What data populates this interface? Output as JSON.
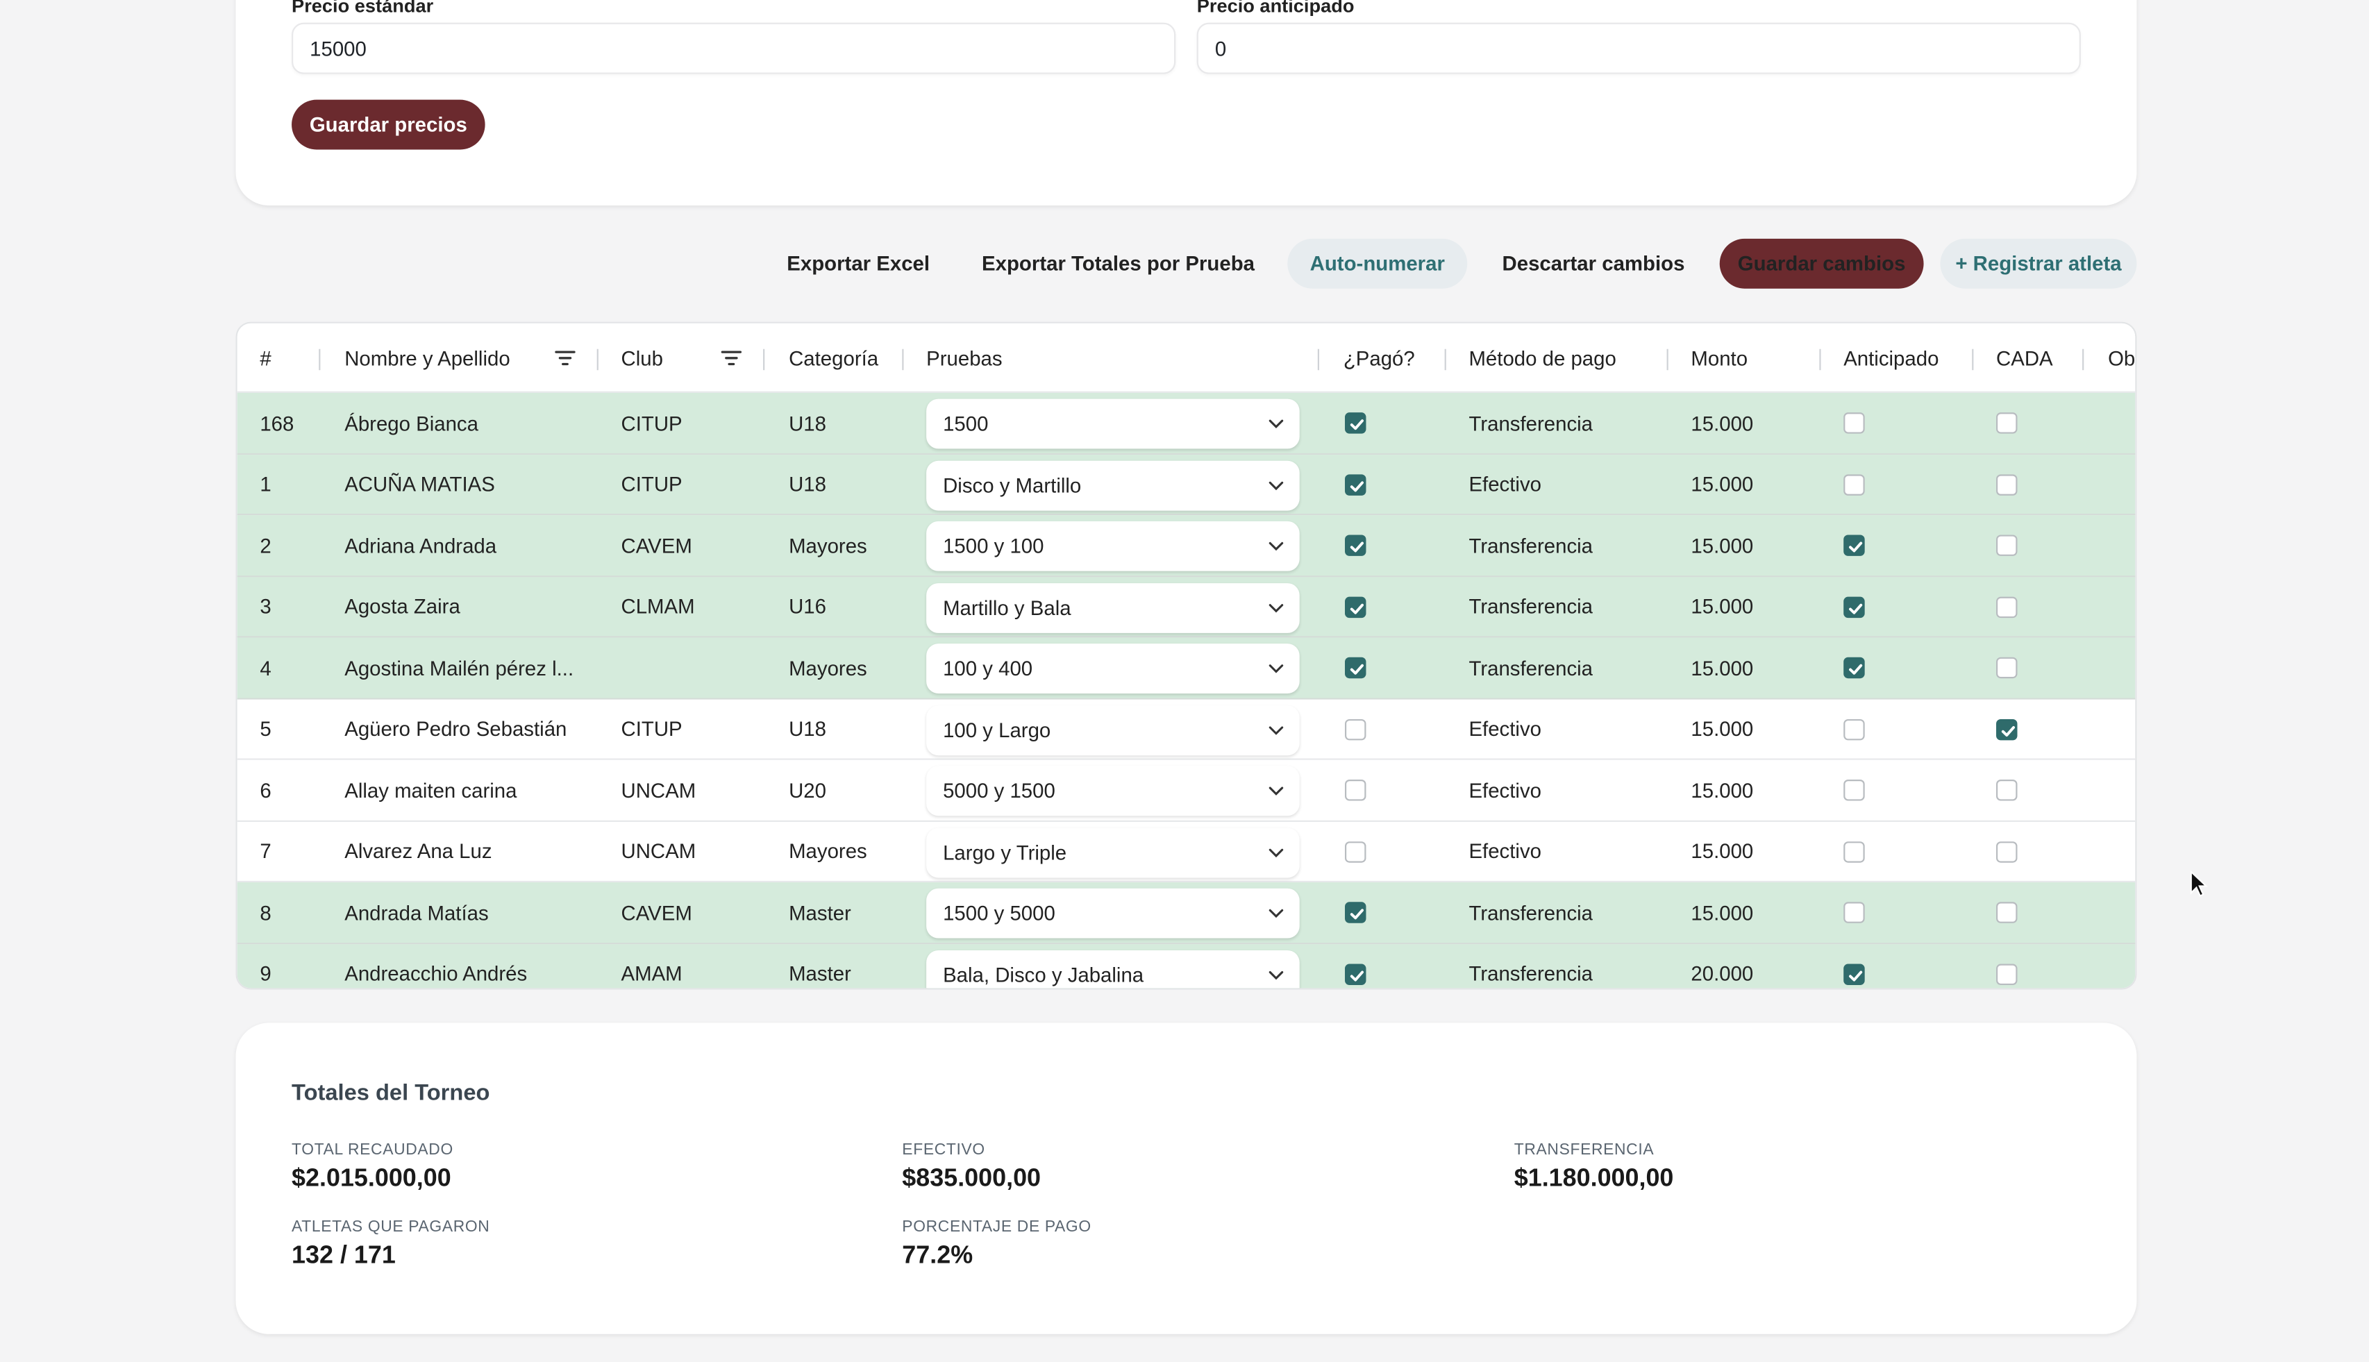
{
  "prices": {
    "standard_label": "Precio estándar",
    "standard_value": "15000",
    "early_label": "Precio anticipado",
    "early_value": "0",
    "save_label": "Guardar precios"
  },
  "toolbar": {
    "export_excel": "Exportar Excel",
    "export_totals": "Exportar Totales por Prueba",
    "auto_number": "Auto-numerar",
    "discard": "Descartar cambios",
    "save": "Guardar cambios",
    "register": "+ Registrar atleta"
  },
  "table": {
    "headers": {
      "num": "#",
      "name": "Nombre y Apellido",
      "club": "Club",
      "category": "Categoría",
      "events": "Pruebas",
      "paid": "¿Pagó?",
      "method": "Método de pago",
      "amount": "Monto",
      "early": "Anticipado",
      "cada": "CADA",
      "obs": "Ob"
    },
    "rows": [
      {
        "num": "168",
        "name": "Ábrego Bianca",
        "club": "CITUP",
        "category": "U18",
        "events": "1500",
        "paid": true,
        "method": "Transferencia",
        "amount": "15.000",
        "early": false,
        "cada": false
      },
      {
        "num": "1",
        "name": "ACUÑA MATIAS",
        "club": "CITUP",
        "category": "U18",
        "events": "Disco y Martillo",
        "paid": true,
        "method": "Efectivo",
        "amount": "15.000",
        "early": false,
        "cada": false
      },
      {
        "num": "2",
        "name": "Adriana Andrada",
        "club": "CAVEM",
        "category": "Mayores",
        "events": "1500 y 100",
        "paid": true,
        "method": "Transferencia",
        "amount": "15.000",
        "early": true,
        "cada": false
      },
      {
        "num": "3",
        "name": "Agosta Zaira",
        "club": "CLMAM",
        "category": "U16",
        "events": "Martillo y Bala",
        "paid": true,
        "method": "Transferencia",
        "amount": "15.000",
        "early": true,
        "cada": false
      },
      {
        "num": "4",
        "name": "Agostina Mailén pérez l...",
        "club": "",
        "category": "Mayores",
        "events": "100 y 400",
        "paid": true,
        "method": "Transferencia",
        "amount": "15.000",
        "early": true,
        "cada": false
      },
      {
        "num": "5",
        "name": "Agüero Pedro Sebastián",
        "club": "CITUP",
        "category": "U18",
        "events": "100 y Largo",
        "paid": false,
        "method": "Efectivo",
        "amount": "15.000",
        "early": false,
        "cada": true
      },
      {
        "num": "6",
        "name": "Allay maiten carina",
        "club": "UNCAM",
        "category": "U20",
        "events": "5000 y 1500",
        "paid": false,
        "method": "Efectivo",
        "amount": "15.000",
        "early": false,
        "cada": false
      },
      {
        "num": "7",
        "name": "Alvarez Ana Luz",
        "club": "UNCAM",
        "category": "Mayores",
        "events": "Largo y Triple",
        "paid": false,
        "method": "Efectivo",
        "amount": "15.000",
        "early": false,
        "cada": false
      },
      {
        "num": "8",
        "name": "Andrada Matías",
        "club": "CAVEM",
        "category": "Master",
        "events": "1500 y 5000",
        "paid": true,
        "method": "Transferencia",
        "amount": "15.000",
        "early": false,
        "cada": false
      },
      {
        "num": "9",
        "name": "Andreacchio Andrés",
        "club": "AMAM",
        "category": "Master",
        "events": "Bala, Disco y Jabalina",
        "paid": true,
        "method": "Transferencia",
        "amount": "20.000",
        "early": true,
        "cada": false
      }
    ]
  },
  "totals": {
    "title": "Totales del Torneo",
    "total_label": "TOTAL RECAUDADO",
    "total_value": "$2.015.000,00",
    "cash_label": "EFECTIVO",
    "cash_value": "$835.000,00",
    "transfer_label": "TRANSFERENCIA",
    "transfer_value": "$1.180.000,00",
    "paid_label": "ATLETAS QUE PAGARON",
    "paid_value": "132 / 171",
    "pct_label": "PORCENTAJE DE PAGO",
    "pct_value": "77.2%"
  },
  "colors": {
    "accent": "#6b2a2e",
    "paid_row": "#d5ebdc",
    "checkbox": "#2f6b6b",
    "teal_text": "#2e6f73"
  }
}
